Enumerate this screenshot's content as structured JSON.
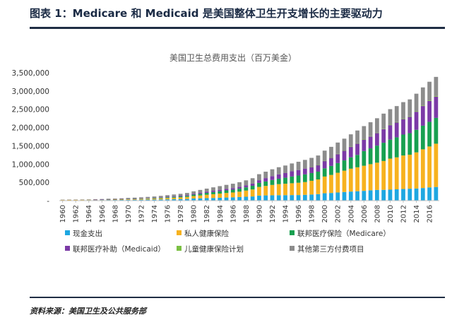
{
  "header": {
    "title": "图表 1：Medicare 和 Medicaid 是美国整体卫生开支增长的主要驱动力"
  },
  "footer": {
    "source": "资料来源：美国卫生及公共服务部"
  },
  "colors": {
    "rule": "#1f2d44",
    "cash": "#1ea7e1",
    "private": "#f7b21f",
    "medicare": "#18a050",
    "medicaid": "#7b3aa6",
    "chip": "#7bc043",
    "other": "#8c8c8c",
    "axis": "#bfbfbf"
  },
  "chart_data": {
    "type": "bar",
    "stacked": true,
    "title": "美国卫生总费用支出（百万美金）",
    "xlabel": "",
    "ylabel": "",
    "ylim": [
      0,
      3500000
    ],
    "yticks": [
      0,
      500000,
      1000000,
      1500000,
      2000000,
      2500000,
      3000000,
      3500000
    ],
    "ytick_labels": [
      "-",
      "500,000",
      "1,000,000",
      "1,500,000",
      "2,000,000",
      "2,500,000",
      "3,000,000",
      "3,500,000"
    ],
    "xtick_labels": [
      "1960",
      "1962",
      "1964",
      "1966",
      "1968",
      "1970",
      "1972",
      "1974",
      "1976",
      "1978",
      "1980",
      "1982",
      "1984",
      "1986",
      "1988",
      "1990",
      "1992",
      "1994",
      "1996",
      "1998",
      "2000",
      "2002",
      "2004",
      "2006",
      "2008",
      "2010",
      "2012",
      "2014",
      "2016"
    ],
    "categories": [
      1960,
      1961,
      1962,
      1963,
      1964,
      1965,
      1966,
      1967,
      1968,
      1969,
      1970,
      1971,
      1972,
      1973,
      1974,
      1975,
      1976,
      1977,
      1978,
      1979,
      1980,
      1981,
      1982,
      1983,
      1984,
      1985,
      1986,
      1987,
      1988,
      1989,
      1990,
      1991,
      1992,
      1993,
      1994,
      1995,
      1996,
      1997,
      1998,
      1999,
      2000,
      2001,
      2002,
      2003,
      2004,
      2005,
      2006,
      2007,
      2008,
      2009,
      2010,
      2011,
      2012,
      2013,
      2014,
      2015,
      2016,
      2017
    ],
    "legend_position": "bottom",
    "series": [
      {
        "name": "现金支出",
        "color_key": "cash",
        "values": [
          12000,
          12500,
          13000,
          14000,
          15000,
          15500,
          16000,
          17000,
          18000,
          19000,
          23000,
          24000,
          26000,
          28000,
          30000,
          32000,
          35000,
          38000,
          41000,
          45000,
          58000,
          63000,
          68000,
          73000,
          79000,
          85000,
          91000,
          98000,
          106000,
          114000,
          138000,
          143000,
          146000,
          149000,
          150000,
          152000,
          153000,
          158000,
          167000,
          178000,
          202000,
          210000,
          222000,
          236000,
          248000,
          258000,
          268000,
          283000,
          292000,
          295000,
          300000,
          310000,
          318000,
          326000,
          331000,
          345000,
          362000,
          374000
        ]
      },
      {
        "name": "私人健康保险",
        "color_key": "private",
        "values": [
          6000,
          6500,
          7000,
          8000,
          9000,
          10000,
          11000,
          12000,
          14000,
          16000,
          17000,
          19000,
          21000,
          24000,
          27000,
          32000,
          37000,
          43000,
          48000,
          55000,
          68000,
          80000,
          92000,
          103000,
          114000,
          124000,
          132000,
          147000,
          169000,
          191000,
          237000,
          260000,
          283000,
          302000,
          312000,
          324000,
          336000,
          350000,
          376000,
          402000,
          457000,
          493000,
          540000,
          583000,
          626000,
          654000,
          686000,
          715000,
          746000,
          790000,
          850000,
          874000,
          917000,
          931000,
          990000,
          1059000,
          1120000,
          1184000
        ]
      },
      {
        "name": "联邦医疗保险（Medicare）",
        "color_key": "medicare",
        "values": [
          0,
          0,
          0,
          0,
          0,
          0,
          1800,
          4500,
          6000,
          7000,
          7600,
          8000,
          9000,
          10500,
          13000,
          16000,
          19500,
          22500,
          26000,
          30000,
          37500,
          44000,
          52000,
          59000,
          65000,
          71000,
          76000,
          82000,
          89000,
          101000,
          110000,
          121000,
          135000,
          149000,
          165000,
          184000,
          197000,
          210000,
          212000,
          213000,
          225000,
          247000,
          265000,
          282000,
          311000,
          339000,
          403000,
          432000,
          468000,
          499000,
          520000,
          548000,
          573000,
          589000,
          618000,
          647000,
          675000,
          706000
        ]
      },
      {
        "name": "联邦医疗补助（Medicaid）",
        "color_key": "medicaid",
        "values": [
          0,
          0,
          0,
          0,
          0,
          500,
          1300,
          2900,
          3700,
          4500,
          5300,
          6600,
          8100,
          9400,
          10600,
          13500,
          15400,
          17500,
          19600,
          22200,
          26000,
          30500,
          32800,
          35300,
          37900,
          41000,
          44600,
          48800,
          53200,
          59600,
          73700,
          92500,
          106900,
          118300,
          127700,
          141700,
          151300,
          158700,
          167200,
          179200,
          200500,
          222100,
          246500,
          264400,
          284600,
          309500,
          307600,
          324600,
          343000,
          374500,
          396500,
          404800,
          423000,
          445300,
          493500,
          538800,
          572500,
          581900
        ]
      },
      {
        "name": "儿童健康保险计划",
        "color_key": "chip",
        "values": [
          0,
          0,
          0,
          0,
          0,
          0,
          0,
          0,
          0,
          0,
          0,
          0,
          0,
          0,
          0,
          0,
          0,
          0,
          0,
          0,
          0,
          0,
          0,
          0,
          0,
          0,
          0,
          0,
          0,
          0,
          0,
          0,
          0,
          0,
          0,
          0,
          0,
          0,
          1000,
          2800,
          4200,
          5000,
          6200,
          6600,
          7000,
          7500,
          8000,
          8600,
          9500,
          11000,
          11500,
          12000,
          13000,
          13600,
          14200,
          14800,
          15600,
          16800
        ]
      },
      {
        "name": "其他第三方付费项目",
        "color_key": "other",
        "values": [
          9000,
          9500,
          10000,
          11000,
          12000,
          13000,
          14000,
          15000,
          16000,
          17000,
          22000,
          24000,
          27000,
          30000,
          33000,
          37000,
          42000,
          47000,
          52000,
          58000,
          65000,
          75000,
          84000,
          93000,
          101000,
          110000,
          119000,
          128000,
          138000,
          148000,
          165000,
          176000,
          187000,
          196000,
          206000,
          216000,
          227000,
          238000,
          247000,
          260000,
          280000,
          295000,
          310000,
          324000,
          338000,
          352000,
          367000,
          382000,
          397000,
          412000,
          426000,
          439000,
          452000,
          466000,
          480000,
          495000,
          509000,
          524000
        ]
      }
    ]
  }
}
